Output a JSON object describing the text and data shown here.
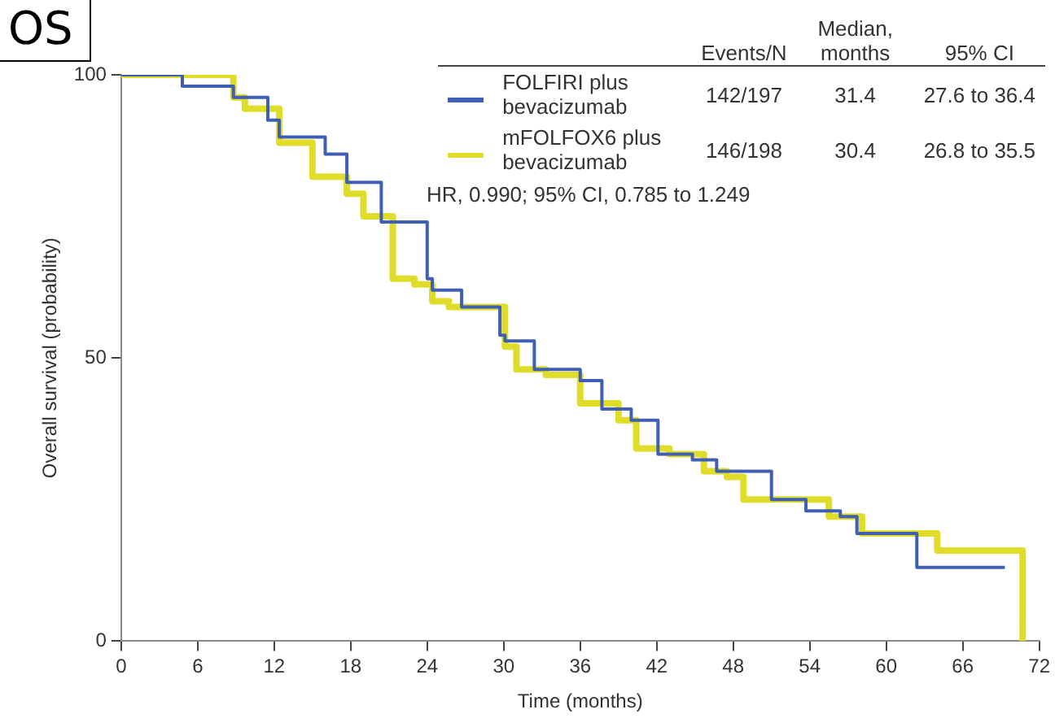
{
  "chart_data": {
    "type": "step",
    "xlabel": "Time (months)",
    "ylabel": "Overall survival (probability)",
    "xlim": [
      0,
      72
    ],
    "xticks": [
      0,
      6,
      12,
      18,
      24,
      30,
      36,
      42,
      48,
      54,
      60,
      66,
      72
    ],
    "ylim": [
      0,
      100
    ],
    "yticks": [
      0,
      50,
      100
    ],
    "grid": false,
    "legend": "top right",
    "marker": "none",
    "line_style": "solid",
    "annotations": [
      "OS",
      "HR, 0.990; 95% CI, 0.785 to 1.249",
      "Events/N",
      "Median, months",
      "95% CI",
      "142/197",
      "31.4",
      "27.6 to 36.4",
      "146/198",
      "30.4",
      "26.8 to 35.5"
    ],
    "series": [
      {
        "name": "FOLFIRI plus bevacizumab",
        "color": "#3f5fb5",
        "x": [
          0,
          3,
          4.8,
          8.8,
          11.5,
          12.4,
          16,
          17.7,
          20.4,
          24,
          24.4,
          26.7,
          29.7,
          30.1,
          32.4,
          36,
          37.7,
          40,
          42.1,
          44.8,
          46.7,
          48.4,
          51,
          53.7,
          56.4,
          57.7,
          62.4,
          69.3
        ],
        "values": [
          100,
          100,
          98,
          96,
          92,
          89,
          86,
          81,
          74,
          64,
          62,
          59,
          54,
          53,
          48,
          46,
          41,
          39,
          33,
          32,
          30,
          30,
          25,
          23,
          22,
          19,
          13,
          13
        ]
      },
      {
        "name": "mFOLFOX6 plus bevacizumab",
        "color": "#e0dc2a",
        "x": [
          0,
          4,
          8.8,
          9.7,
          12.4,
          15,
          17.7,
          19,
          21.3,
          23,
          24.4,
          25.7,
          30.1,
          31,
          33.3,
          36,
          39,
          40.4,
          43,
          45.7,
          47.5,
          48.8,
          55.5,
          58.1,
          64,
          70.7
        ],
        "values": [
          100,
          100,
          96,
          94,
          88,
          82,
          79,
          75,
          64,
          63,
          60,
          59,
          52,
          48,
          47,
          42,
          39,
          34,
          33,
          30,
          29,
          25,
          22,
          19,
          16,
          0
        ]
      }
    ]
  }
}
